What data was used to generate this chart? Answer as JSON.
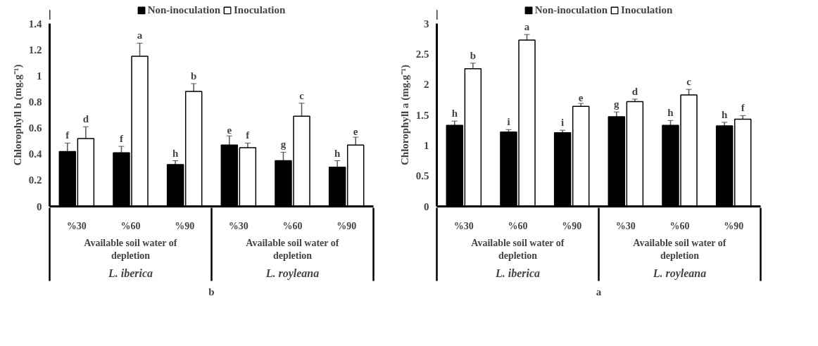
{
  "chart_data": [
    {
      "type": "bar",
      "title": "b",
      "ylabel": "Chlorophyll b (mg.g⁻¹)",
      "categories": [
        "%30",
        "%60",
        "%90",
        "%30",
        "%60",
        "%90"
      ],
      "series": [
        {
          "name": "Non-inoculation",
          "color": "#000000",
          "values": [
            0.42,
            0.41,
            0.32,
            0.47,
            0.35,
            0.3
          ],
          "errors": [
            0.065,
            0.05,
            0.03,
            0.07,
            0.065,
            0.05
          ],
          "value_labels": [
            "f",
            "f",
            "h",
            "e",
            "g",
            "h"
          ]
        },
        {
          "name": "Inoculation",
          "color": "#ffffff",
          "values": [
            0.52,
            1.15,
            0.88,
            0.45,
            0.69,
            0.47
          ],
          "errors": [
            0.09,
            0.1,
            0.06,
            0.035,
            0.1,
            0.06
          ],
          "value_labels": [
            "d",
            "a",
            "b",
            "f",
            "c",
            "e"
          ]
        }
      ],
      "ylim": [
        0,
        1.4
      ],
      "yticks": [
        0,
        0.2,
        0.4,
        0.6,
        0.8,
        1,
        1.2,
        1.4
      ],
      "grid": false,
      "legend": "top",
      "annotations": [
        "Available soil water of depletion",
        "Available soil water of depletion",
        "L. iberica",
        "L. royleana"
      ]
    },
    {
      "type": "bar",
      "title": "a",
      "ylabel": "Chlorophyll a (mg.g⁻¹)",
      "categories": [
        "%30",
        "%60",
        "%90",
        "%30",
        "%60",
        "%90"
      ],
      "series": [
        {
          "name": "Non-inoculation",
          "color": "#000000",
          "values": [
            1.33,
            1.22,
            1.21,
            1.47,
            1.33,
            1.32
          ],
          "errors": [
            0.07,
            0.04,
            0.04,
            0.08,
            0.08,
            0.06
          ],
          "value_labels": [
            "h",
            "i",
            "i",
            "g",
            "h",
            "h"
          ]
        },
        {
          "name": "Inoculation",
          "color": "#ffffff",
          "values": [
            2.26,
            2.73,
            1.64,
            1.72,
            1.83,
            1.43
          ],
          "errors": [
            0.09,
            0.09,
            0.05,
            0.04,
            0.09,
            0.06
          ],
          "value_labels": [
            "b",
            "a",
            "e",
            "d",
            "c",
            "f"
          ]
        }
      ],
      "ylim": [
        0,
        3
      ],
      "yticks": [
        0,
        0.5,
        1,
        1.5,
        2,
        2.5,
        3
      ],
      "grid": false,
      "legend": "top",
      "annotations": [
        "Available soil water of depletion",
        "Available soil water of depletion",
        "L. iberica",
        "L. royleana"
      ]
    }
  ]
}
